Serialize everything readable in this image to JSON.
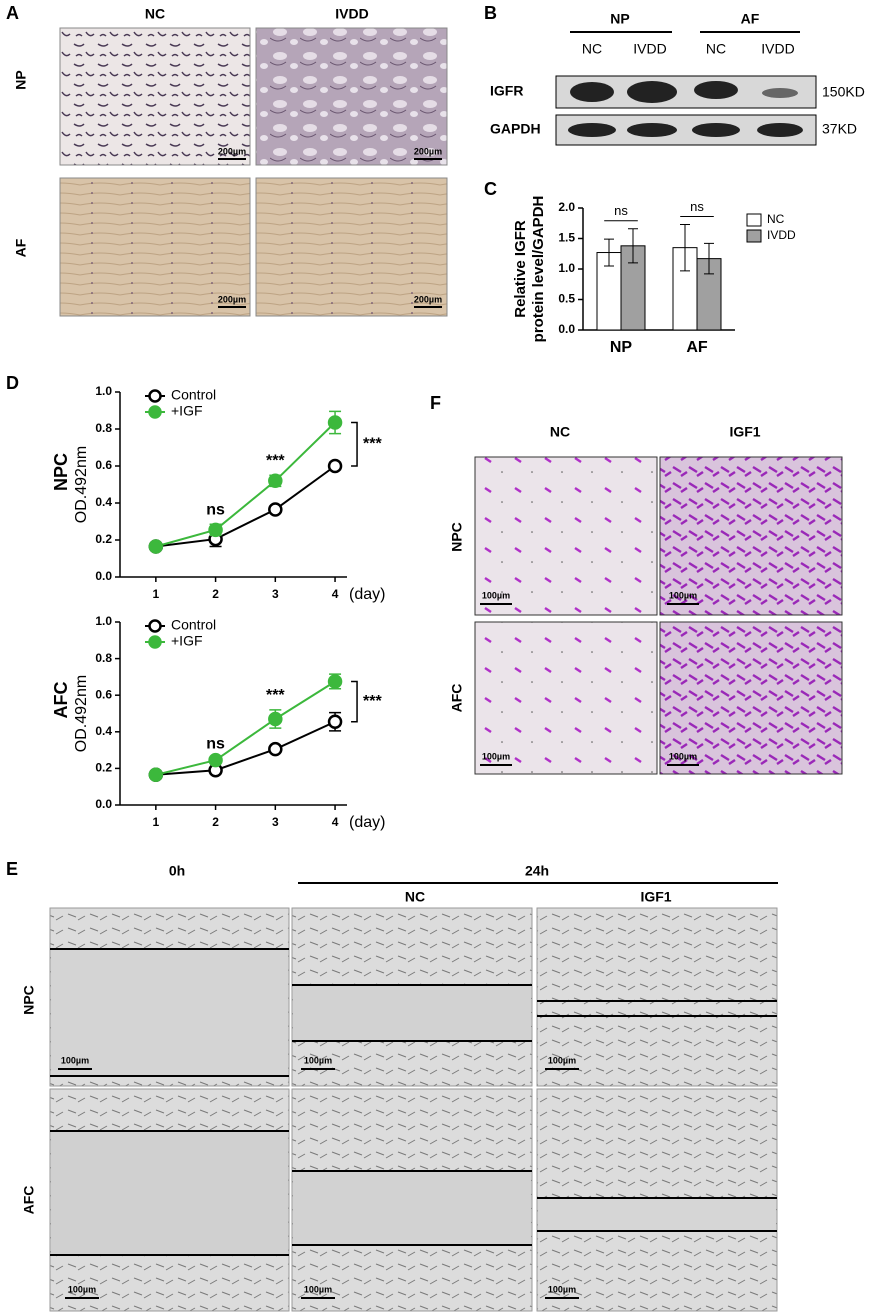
{
  "panels": {
    "A": {
      "label": "A",
      "columns": [
        "NC",
        "IVDD"
      ],
      "rows": [
        "NP",
        "AF"
      ],
      "scale_bar": "200µm"
    },
    "B": {
      "label": "B",
      "groups": [
        "NP",
        "AF"
      ],
      "lanes": [
        "NC",
        "IVDD",
        "NC",
        "IVDD"
      ],
      "proteins": [
        {
          "name": "IGFR",
          "size": "150KD"
        },
        {
          "name": "GAPDH",
          "size": "37KD"
        }
      ]
    },
    "C": {
      "label": "C"
    },
    "D": {
      "label": "D",
      "rows": [
        "NPC",
        "AFC"
      ]
    },
    "F": {
      "label": "F",
      "columns": [
        "NC",
        "IGF1"
      ],
      "rows": [
        "NPC",
        "AFC"
      ],
      "scale_bar": "100µm"
    },
    "E": {
      "label": "E",
      "time0": "0h",
      "time24": "24h",
      "columns": [
        "NC",
        "IGF1"
      ],
      "rows": [
        "NPC",
        "AFC"
      ],
      "scale_bar": "100µm"
    }
  },
  "chart_data": [
    {
      "type": "bar",
      "ylabel": [
        "Relative IGFR",
        "protein level/GAPDH"
      ],
      "categories": [
        "NP",
        "AF"
      ],
      "series": [
        {
          "name": "NC",
          "color": "#ffffff",
          "values": [
            1.27,
            1.35
          ],
          "errors": [
            0.22,
            0.38
          ]
        },
        {
          "name": "IVDD",
          "color": "#a0a0a0",
          "values": [
            1.38,
            1.17
          ],
          "errors": [
            0.28,
            0.25
          ]
        }
      ],
      "ylim": [
        0,
        2
      ],
      "yticks": [
        {
          "value": 0,
          "label": "0.0"
        },
        {
          "value": 0.5,
          "label": "0.5"
        },
        {
          "value": 1,
          "label": "1.0"
        },
        {
          "value": 1.5,
          "label": "1.5"
        },
        {
          "value": 2,
          "label": "2.0"
        }
      ],
      "annotations": [
        "ns",
        "ns"
      ]
    },
    {
      "type": "line",
      "ylabel": "OD.492nm",
      "xlabel": "(day)",
      "x": [
        1,
        2,
        3,
        4
      ],
      "series": [
        {
          "name": "Control",
          "color": "#000000",
          "marker": "open",
          "values": [
            0.165,
            0.205,
            0.365,
            0.6
          ],
          "errors": [
            0.01,
            0.04,
            0.01,
            0.02
          ]
        },
        {
          "name": "+IGF",
          "color": "#3cb83c",
          "marker": "filled",
          "values": [
            0.165,
            0.255,
            0.52,
            0.835
          ],
          "errors": [
            0.01,
            0.03,
            0.03,
            0.06
          ]
        }
      ],
      "xlim": [
        0.4,
        4.2
      ],
      "xticks": [
        1,
        2,
        3,
        4
      ],
      "ylim": [
        0,
        1
      ],
      "yticks": [
        {
          "value": 0,
          "label": "0.0"
        },
        {
          "value": 0.2,
          "label": "0.2"
        },
        {
          "value": 0.4,
          "label": "0.4"
        },
        {
          "value": 0.6,
          "label": "0.6"
        },
        {
          "value": 0.8,
          "label": "0.8"
        },
        {
          "value": 1,
          "label": "1.0"
        }
      ],
      "annotations": [
        {
          "x": 2,
          "text": "ns"
        },
        {
          "x": 3,
          "text": "***"
        },
        {
          "x": 4,
          "text": "***",
          "bracket": true
        }
      ]
    },
    {
      "type": "line",
      "ylabel": "OD.492nm",
      "xlabel": "(day)",
      "x": [
        1,
        2,
        3,
        4
      ],
      "series": [
        {
          "name": "Control",
          "color": "#000000",
          "marker": "open",
          "values": [
            0.165,
            0.19,
            0.305,
            0.455
          ],
          "errors": [
            0.01,
            0.01,
            0.01,
            0.05
          ]
        },
        {
          "name": "+IGF",
          "color": "#3cb83c",
          "marker": "filled",
          "values": [
            0.165,
            0.245,
            0.47,
            0.675
          ],
          "errors": [
            0.01,
            0.01,
            0.05,
            0.04
          ]
        }
      ],
      "xlim": [
        0.4,
        4.2
      ],
      "xticks": [
        1,
        2,
        3,
        4
      ],
      "ylim": [
        0,
        1
      ],
      "yticks": [
        {
          "value": 0,
          "label": "0.0"
        },
        {
          "value": 0.2,
          "label": "0.2"
        },
        {
          "value": 0.4,
          "label": "0.4"
        },
        {
          "value": 0.6,
          "label": "0.6"
        },
        {
          "value": 0.8,
          "label": "0.8"
        },
        {
          "value": 1,
          "label": "1.0"
        }
      ],
      "annotations": [
        {
          "x": 2,
          "text": "ns"
        },
        {
          "x": 3,
          "text": "***"
        },
        {
          "x": 4,
          "text": "***",
          "bracket": true
        }
      ]
    }
  ]
}
